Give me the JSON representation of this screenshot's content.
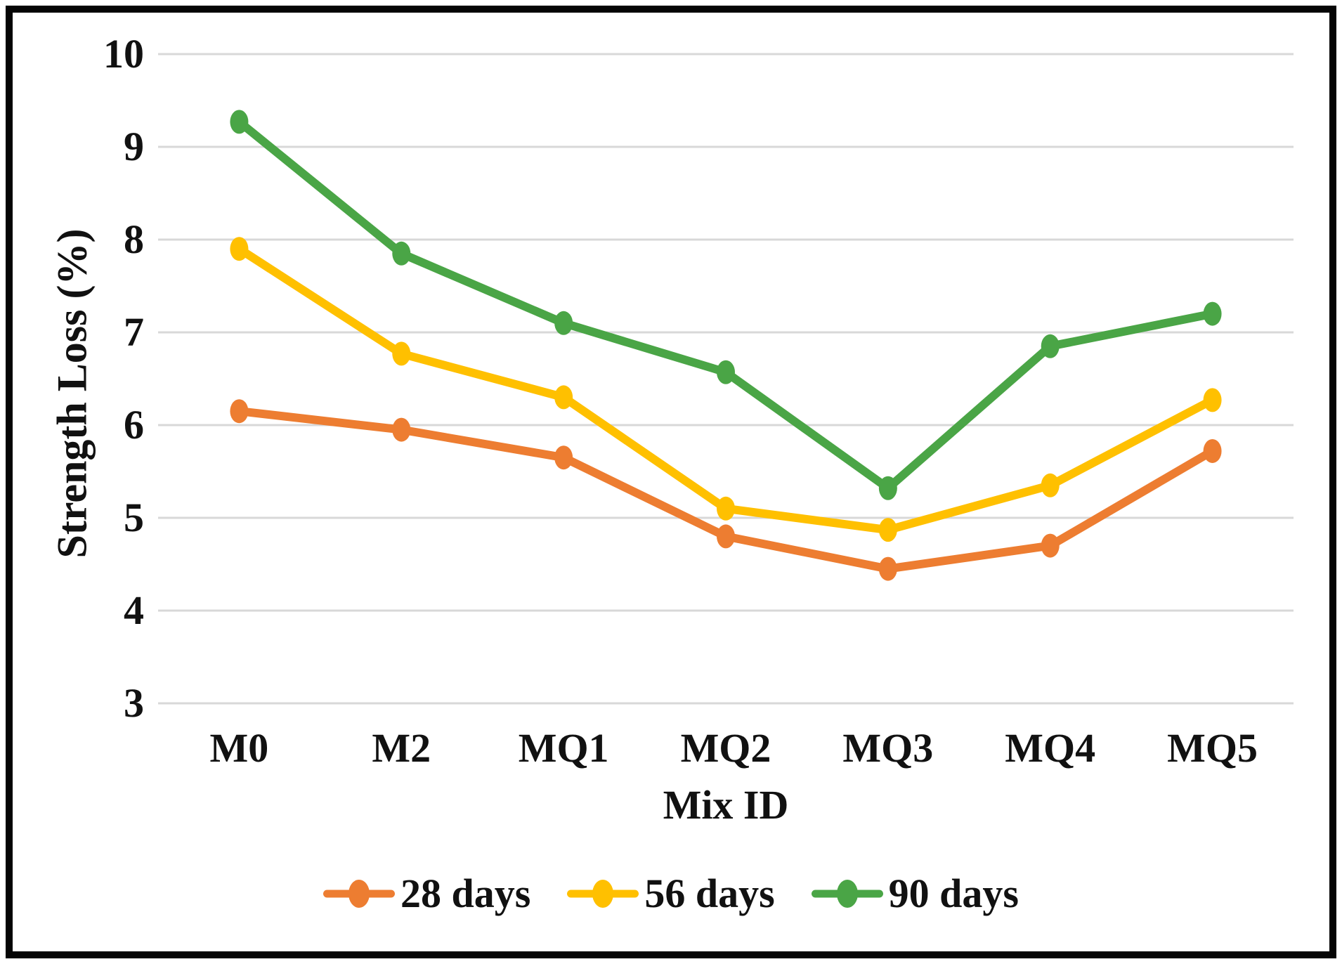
{
  "figure": {
    "background": "#ffffff",
    "border_color": "#050505",
    "text_color": "#111111"
  },
  "chart_data": {
    "type": "line",
    "title": "",
    "xlabel": "Mix ID",
    "ylabel": "Strength Loss (%)",
    "categories": [
      "M0",
      "M2",
      "MQ1",
      "MQ2",
      "MQ3",
      "MQ4",
      "MQ5"
    ],
    "series": [
      {
        "name": "28 days",
        "color": "#ED7D31",
        "values": [
          6.15,
          5.95,
          5.65,
          4.8,
          4.45,
          4.7,
          5.72
        ]
      },
      {
        "name": "56 days",
        "color": "#FFC000",
        "values": [
          7.9,
          6.77,
          6.3,
          5.1,
          4.87,
          5.35,
          6.27
        ]
      },
      {
        "name": "90 days",
        "color": "#4AA546",
        "values": [
          9.27,
          7.85,
          7.1,
          6.57,
          5.32,
          6.85,
          7.2
        ]
      }
    ],
    "ylim": [
      3,
      10
    ],
    "yticks": [
      10,
      9,
      8,
      7,
      6,
      5,
      4,
      3
    ],
    "grid": "horizontal",
    "gridline_color": "#D8D8D8",
    "legend_position": "bottom",
    "marker": "ellipse-dot"
  }
}
